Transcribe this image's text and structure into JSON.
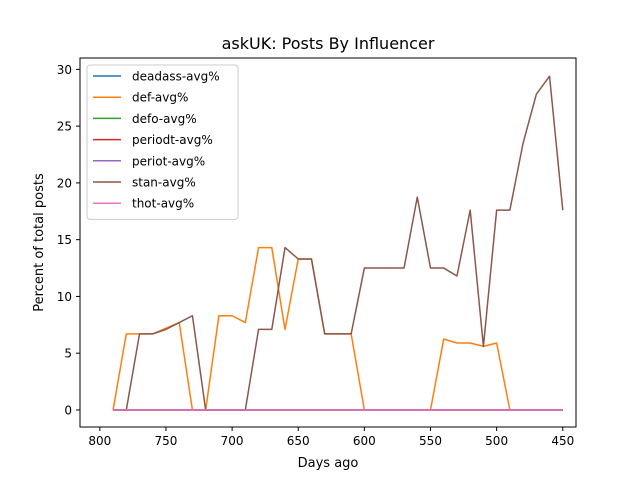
{
  "chart_data": {
    "type": "line",
    "title": "askUK: Posts By Influencer",
    "xlabel": "Days ago",
    "ylabel": "Percent of total posts",
    "xlim": [
      815,
      440
    ],
    "ylim": [
      -1.5,
      31
    ],
    "x_inverted": true,
    "xticks": [
      800,
      750,
      700,
      650,
      600,
      550,
      500,
      450
    ],
    "yticks": [
      0,
      5,
      10,
      15,
      20,
      25,
      30
    ],
    "grid": false,
    "legend_position": "upper-left",
    "series": [
      {
        "name": "deadass-avg%",
        "color": "#1f77b4",
        "x": [
          790,
          450
        ],
        "y": [
          0,
          0
        ]
      },
      {
        "name": "def-avg%",
        "color": "#ff7f0e",
        "x": [
          790,
          780,
          770,
          760,
          740,
          730,
          720,
          710,
          700,
          690,
          680,
          670,
          660,
          650,
          640,
          630,
          610,
          600,
          590,
          580,
          570,
          560,
          550,
          540,
          530,
          520,
          510,
          500,
          490,
          480,
          470,
          460,
          450
        ],
        "y": [
          0,
          6.7,
          6.7,
          6.7,
          7.7,
          0,
          0,
          8.3,
          8.3,
          7.7,
          14.3,
          14.3,
          7.1,
          13.3,
          13.3,
          6.7,
          6.7,
          0,
          0,
          0,
          0,
          0,
          0,
          6.25,
          5.9,
          5.9,
          5.6,
          5.9,
          0,
          0,
          0,
          0,
          0
        ]
      },
      {
        "name": "defo-avg%",
        "color": "#2ca02c",
        "x": [
          790,
          450
        ],
        "y": [
          0,
          0
        ]
      },
      {
        "name": "periodt-avg%",
        "color": "#d62728",
        "x": [
          790,
          450
        ],
        "y": [
          0,
          0
        ]
      },
      {
        "name": "periot-avg%",
        "color": "#9467bd",
        "x": [
          790,
          450
        ],
        "y": [
          0,
          0
        ]
      },
      {
        "name": "stan-avg%",
        "color": "#8c564b",
        "x": [
          790,
          780,
          770,
          760,
          750,
          740,
          730,
          720,
          710,
          700,
          690,
          680,
          670,
          660,
          650,
          640,
          630,
          620,
          610,
          600,
          590,
          580,
          570,
          560,
          550,
          540,
          530,
          520,
          510,
          500,
          490,
          480,
          470,
          460,
          450
        ],
        "y": [
          0,
          0,
          6.7,
          6.7,
          7.1,
          7.7,
          8.3,
          0,
          0,
          0,
          0,
          7.1,
          7.1,
          14.3,
          13.3,
          13.3,
          6.7,
          6.7,
          6.7,
          12.5,
          12.5,
          12.5,
          12.5,
          18.75,
          12.5,
          12.5,
          11.8,
          17.6,
          5.6,
          17.6,
          17.6,
          23.5,
          27.8,
          29.4,
          17.6
        ]
      },
      {
        "name": "thot-avg%",
        "color": "#e377c2",
        "x": [
          790,
          450
        ],
        "y": [
          0,
          0
        ]
      }
    ]
  }
}
